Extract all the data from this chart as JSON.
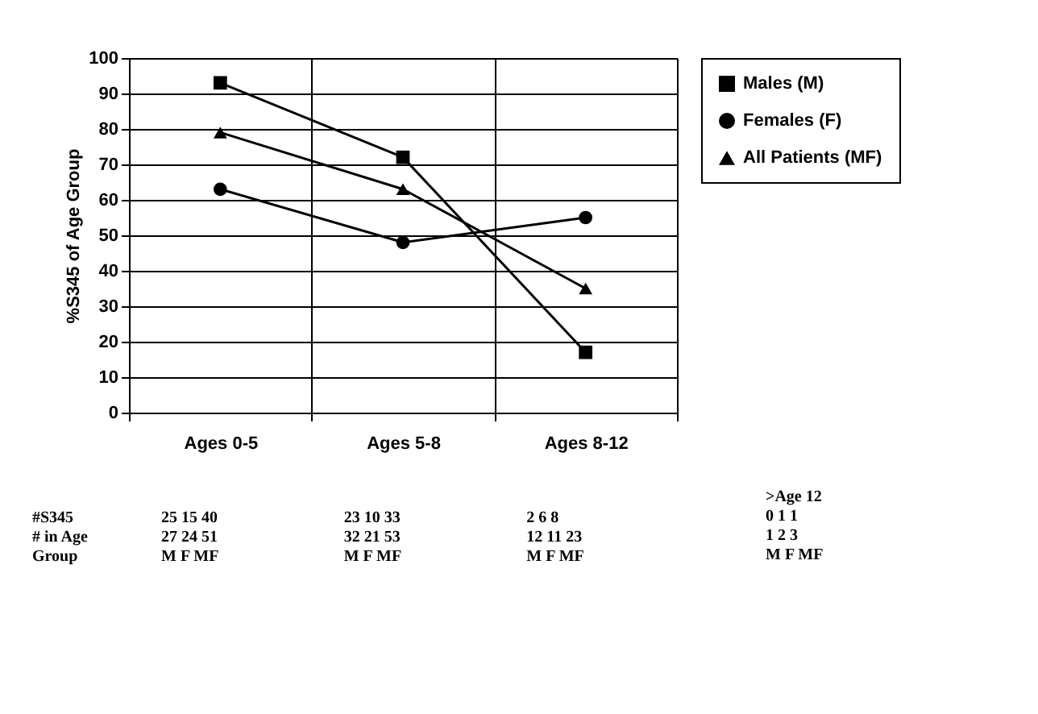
{
  "chart_data": {
    "type": "line",
    "ylabel": "%S345 of Age Group",
    "categories": [
      "Ages 0-5",
      "Ages 5-8",
      "Ages 8-12"
    ],
    "series": [
      {
        "name": "Males (M)",
        "color": "#000000",
        "marker": "square",
        "values": [
          93,
          72,
          17
        ]
      },
      {
        "name": "Females (F)",
        "color": "#000000",
        "marker": "circle",
        "values": [
          63,
          48,
          55
        ]
      },
      {
        "name": "All Patients (MF)",
        "color": "#000000",
        "marker": "triangle",
        "values": [
          79,
          63,
          35
        ]
      }
    ],
    "ylim": [
      0,
      100
    ],
    "yticks": [
      0,
      10,
      20,
      30,
      40,
      50,
      60,
      70,
      80,
      90,
      100
    ],
    "grid": true,
    "legend": "top right",
    "line_style": "solid",
    "annotations": [
      "#S345\n# in Age\nGroup",
      "25  15  40\n27  24  51\nM   F   MF",
      "23  10  33\n32  21  53\nM   F   MF",
      "2   6   8\n12 11  23\nM   F   MF",
      ">Age 12\n0   1   1\n1   2   3\nM   F   MF"
    ]
  }
}
